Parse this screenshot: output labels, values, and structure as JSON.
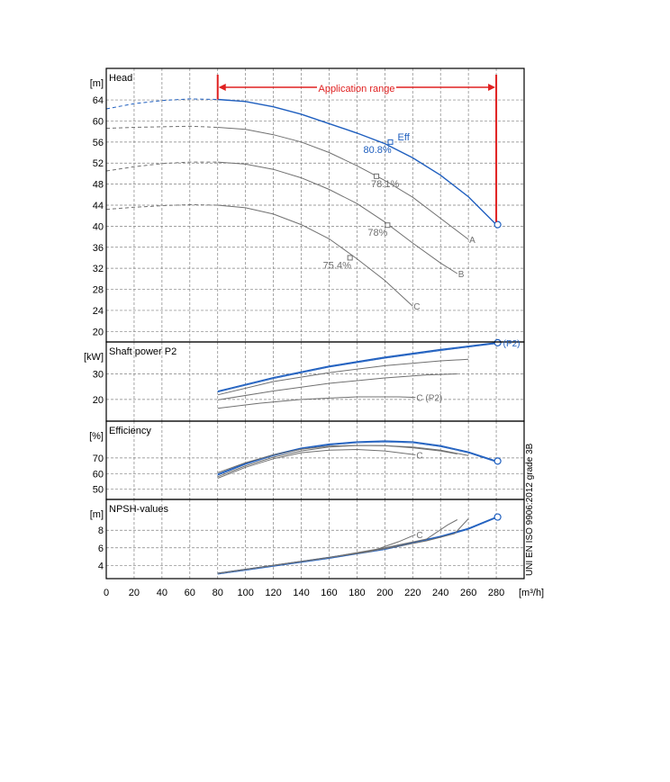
{
  "colors": {
    "primary_curve": "#1f5fbf",
    "secondary_curve": "#707070",
    "range_marker": "#e02020",
    "grid": "#808080",
    "frame": "#000000"
  },
  "x_axis": {
    "ticks": [
      0,
      20,
      40,
      60,
      80,
      100,
      120,
      140,
      160,
      180,
      200,
      220,
      240,
      260,
      280
    ],
    "unit": "[m³/h]",
    "range": [
      0,
      300
    ]
  },
  "side_note": "UNI EN ISO 9906:2012 grade 3B",
  "application_range": {
    "label": "Application range",
    "x_start": 80,
    "x_end": 280
  },
  "chart_data": [
    {
      "type": "line",
      "title": "Head",
      "ylabel": "[m]",
      "ylim": [
        18,
        70
      ],
      "yticks": [
        20,
        24,
        28,
        32,
        36,
        40,
        44,
        48,
        52,
        56,
        60,
        64
      ],
      "grid": true,
      "series": [
        {
          "role": "primary",
          "points": [
            [
              80,
              64.1
            ],
            [
              100,
              63.7
            ],
            [
              120,
              62.7
            ],
            [
              140,
              61.3
            ],
            [
              160,
              59.5
            ],
            [
              180,
              57.7
            ],
            [
              200,
              55.7
            ],
            [
              220,
              53.0
            ],
            [
              240,
              49.7
            ],
            [
              260,
              45.6
            ],
            [
              280,
              40.3
            ]
          ],
          "extrapolated": [
            [
              0,
              62.3
            ],
            [
              20,
              63.3
            ],
            [
              40,
              63.9
            ],
            [
              60,
              64.2
            ],
            [
              80,
              64.1
            ]
          ],
          "end_marker": [
            281,
            40.3
          ]
        },
        {
          "role": "secondary",
          "end_label": "A",
          "points": [
            [
              80,
              58.8
            ],
            [
              100,
              58.4
            ],
            [
              120,
              57.4
            ],
            [
              140,
              56.0
            ],
            [
              160,
              54.0
            ],
            [
              180,
              51.5
            ],
            [
              200,
              48.7
            ],
            [
              220,
              45.5
            ],
            [
              240,
              41.5
            ],
            [
              260,
              37.5
            ]
          ],
          "extrapolated": [
            [
              0,
              58.6
            ],
            [
              20,
              58.8
            ],
            [
              40,
              58.9
            ],
            [
              60,
              59.0
            ],
            [
              80,
              58.8
            ]
          ]
        },
        {
          "role": "secondary",
          "end_label": "B",
          "points": [
            [
              80,
              52.2
            ],
            [
              100,
              51.8
            ],
            [
              120,
              50.8
            ],
            [
              140,
              49.2
            ],
            [
              160,
              47.0
            ],
            [
              180,
              44.3
            ],
            [
              200,
              40.8
            ],
            [
              220,
              36.8
            ],
            [
              240,
              33.0
            ],
            [
              252,
              31.0
            ]
          ],
          "extrapolated": [
            [
              0,
              50.5
            ],
            [
              20,
              51.3
            ],
            [
              40,
              51.9
            ],
            [
              60,
              52.2
            ],
            [
              80,
              52.2
            ]
          ]
        },
        {
          "role": "secondary",
          "end_label": "C",
          "points": [
            [
              80,
              44.0
            ],
            [
              100,
              43.5
            ],
            [
              120,
              42.3
            ],
            [
              140,
              40.3
            ],
            [
              160,
              37.6
            ],
            [
              180,
              33.8
            ],
            [
              200,
              29.7
            ],
            [
              220,
              24.8
            ]
          ],
          "extrapolated": [
            [
              0,
              43.2
            ],
            [
              20,
              43.6
            ],
            [
              40,
              43.9
            ],
            [
              60,
              44.1
            ],
            [
              80,
              44.0
            ]
          ]
        }
      ],
      "markers": [
        {
          "label": "Eff",
          "x": 204,
          "y": 56.0,
          "role": "primary"
        },
        {
          "label": "80.8%",
          "x": 204,
          "y": 56.0,
          "role": "primary"
        },
        {
          "label": "78.1%",
          "x": 194,
          "y": 49.5,
          "role": "secondary"
        },
        {
          "label": "78%",
          "x": 202,
          "y": 40.2,
          "role": "secondary"
        },
        {
          "label": "75.4%",
          "x": 175,
          "y": 34.0,
          "role": "secondary"
        }
      ]
    },
    {
      "type": "line",
      "title": "Shaft power P2",
      "ylabel": "[kW]",
      "ylim": [
        11.5,
        42.5
      ],
      "yticks": [
        20,
        30
      ],
      "grid": true,
      "series": [
        {
          "role": "primary",
          "end_label": "(P2)",
          "points": [
            [
              80,
              23.2
            ],
            [
              120,
              28.5
            ],
            [
              160,
              33.0
            ],
            [
              200,
              36.5
            ],
            [
              240,
              39.5
            ],
            [
              280,
              42.2
            ]
          ],
          "end_marker": [
            281,
            42.2
          ]
        },
        {
          "role": "secondary",
          "points": [
            [
              80,
              21.8
            ],
            [
              120,
              27.0
            ],
            [
              160,
              30.5
            ],
            [
              200,
              33.2
            ],
            [
              240,
              35.1
            ],
            [
              260,
              35.7
            ]
          ]
        },
        {
          "role": "secondary",
          "points": [
            [
              80,
              19.8
            ],
            [
              120,
              23.3
            ],
            [
              160,
              26.3
            ],
            [
              200,
              28.4
            ],
            [
              230,
              29.6
            ],
            [
              252,
              30.0
            ]
          ]
        },
        {
          "role": "secondary",
          "end_label": "C (P2)",
          "points": [
            [
              80,
              16.5
            ],
            [
              110,
              18.5
            ],
            [
              140,
              20.0
            ],
            [
              180,
              21.0
            ],
            [
              210,
              21.0
            ],
            [
              222,
              20.8
            ]
          ]
        }
      ]
    },
    {
      "type": "line",
      "title": "Efficiency",
      "ylabel": "[%]",
      "ylim": [
        43.5,
        93.5
      ],
      "yticks": [
        50,
        60,
        70
      ],
      "grid": true,
      "series": [
        {
          "role": "primary",
          "points": [
            [
              80,
              59.5
            ],
            [
              100,
              66.5
            ],
            [
              120,
              72.0
            ],
            [
              140,
              76.2
            ],
            [
              160,
              78.8
            ],
            [
              180,
              80.2
            ],
            [
              200,
              80.8
            ],
            [
              220,
              80.2
            ],
            [
              240,
              77.8
            ],
            [
              260,
              73.8
            ],
            [
              280,
              68.0
            ]
          ],
          "end_marker": [
            281,
            68.0
          ]
        },
        {
          "role": "secondary",
          "points": [
            [
              80,
              60.5
            ],
            [
              100,
              67.0
            ],
            [
              120,
              72.0
            ],
            [
              140,
              75.5
            ],
            [
              160,
              77.5
            ],
            [
              180,
              78.0
            ],
            [
              200,
              77.8
            ],
            [
              220,
              77.0
            ],
            [
              240,
              75.0
            ],
            [
              260,
              71.5
            ]
          ]
        },
        {
          "role": "secondary",
          "points": [
            [
              80,
              58.0
            ],
            [
              100,
              65.0
            ],
            [
              120,
              70.5
            ],
            [
              140,
              74.5
            ],
            [
              160,
              77.0
            ],
            [
              180,
              78.0
            ],
            [
              200,
              77.8
            ],
            [
              220,
              76.5
            ],
            [
              240,
              74.5
            ],
            [
              252,
              72.5
            ]
          ]
        },
        {
          "role": "secondary",
          "end_label": "C",
          "points": [
            [
              80,
              57.0
            ],
            [
              100,
              64.0
            ],
            [
              120,
              69.5
            ],
            [
              140,
              73.3
            ],
            [
              160,
              75.0
            ],
            [
              180,
              75.4
            ],
            [
              200,
              74.5
            ],
            [
              222,
              72.0
            ]
          ]
        }
      ]
    },
    {
      "type": "line",
      "title": "NPSH-values",
      "ylabel": "[m]",
      "ylim": [
        2.5,
        11.5
      ],
      "yticks": [
        4,
        6,
        8
      ],
      "grid": true,
      "series": [
        {
          "role": "primary",
          "points": [
            [
              80,
              3.1
            ],
            [
              120,
              4.0
            ],
            [
              160,
              4.9
            ],
            [
              200,
              5.9
            ],
            [
              240,
              7.3
            ],
            [
              260,
              8.2
            ],
            [
              280,
              9.5
            ]
          ],
          "end_marker": [
            281,
            9.5
          ]
        },
        {
          "role": "secondary",
          "points": [
            [
              80,
              3.1
            ],
            [
              120,
              4.0
            ],
            [
              160,
              4.9
            ],
            [
              200,
              5.9
            ],
            [
              230,
              6.8
            ],
            [
              250,
              7.6
            ],
            [
              260,
              9.3
            ]
          ]
        },
        {
          "role": "secondary",
          "points": [
            [
              80,
              3.1
            ],
            [
              120,
              4.0
            ],
            [
              160,
              4.9
            ],
            [
              200,
              6.0
            ],
            [
              230,
              7.0
            ],
            [
              245,
              8.6
            ],
            [
              252,
              9.2
            ]
          ]
        },
        {
          "role": "secondary",
          "end_label": "C",
          "points": [
            [
              80,
              3.1
            ],
            [
              120,
              4.0
            ],
            [
              160,
              4.9
            ],
            [
              190,
              5.6
            ],
            [
              210,
              6.7
            ],
            [
              222,
              7.5
            ]
          ]
        }
      ]
    }
  ]
}
